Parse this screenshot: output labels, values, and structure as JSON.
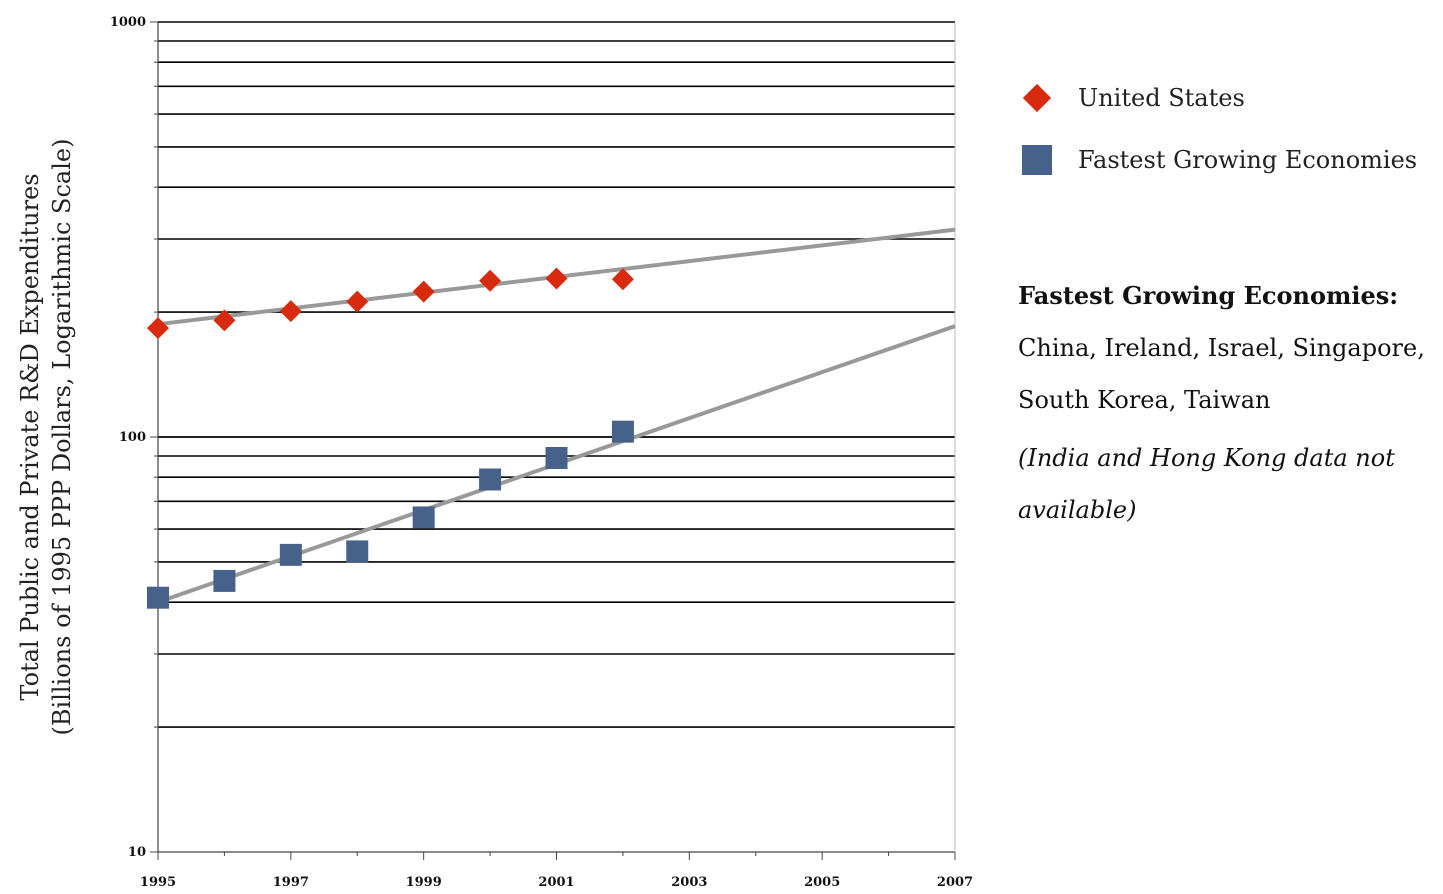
{
  "chart_data": {
    "type": "scatter",
    "title": "",
    "xlabel": "",
    "ylabel_line1": "Total Public and Private R&D Expenditures",
    "ylabel_line2": "(Billions of 1995 PPP Dollars, Logarithmic Scale)",
    "y_scale": "log",
    "ylim": [
      10,
      1000
    ],
    "xlim": [
      1995,
      2007
    ],
    "x_ticks": [
      "1995",
      "1997",
      "1999",
      "2001",
      "2003",
      "2005",
      "2007"
    ],
    "y_ticks": [
      "10",
      "100",
      "1000"
    ],
    "grid": true,
    "legend_position": "right",
    "series": [
      {
        "name": "United States",
        "marker": "diamond",
        "color": "#d72a0e",
        "x": [
          1995,
          1996,
          1997,
          1998,
          1999,
          2000,
          2001,
          2002
        ],
        "values": [
          183,
          191,
          201,
          212,
          224,
          238,
          241,
          240
        ],
        "trendline": {
          "x": [
            1995,
            2007
          ],
          "y": [
            187,
            316
          ]
        }
      },
      {
        "name": "Fastest Growing Economies",
        "marker": "square",
        "color": "#47628a",
        "x": [
          1995,
          1996,
          1997,
          1998,
          1999,
          2000,
          2001,
          2002
        ],
        "values": [
          41,
          45,
          52,
          53,
          64,
          79,
          89,
          103
        ],
        "trendline": {
          "x": [
            1995,
            2007
          ],
          "y": [
            40,
            185
          ]
        }
      }
    ],
    "trendline_color": "#999999"
  },
  "note": {
    "title": "Fastest Growing Economies:",
    "line1": "China, Ireland, Israel, Singapore,",
    "line2": "South Korea, Taiwan",
    "italic": "(India and Hong Kong data not available)"
  }
}
